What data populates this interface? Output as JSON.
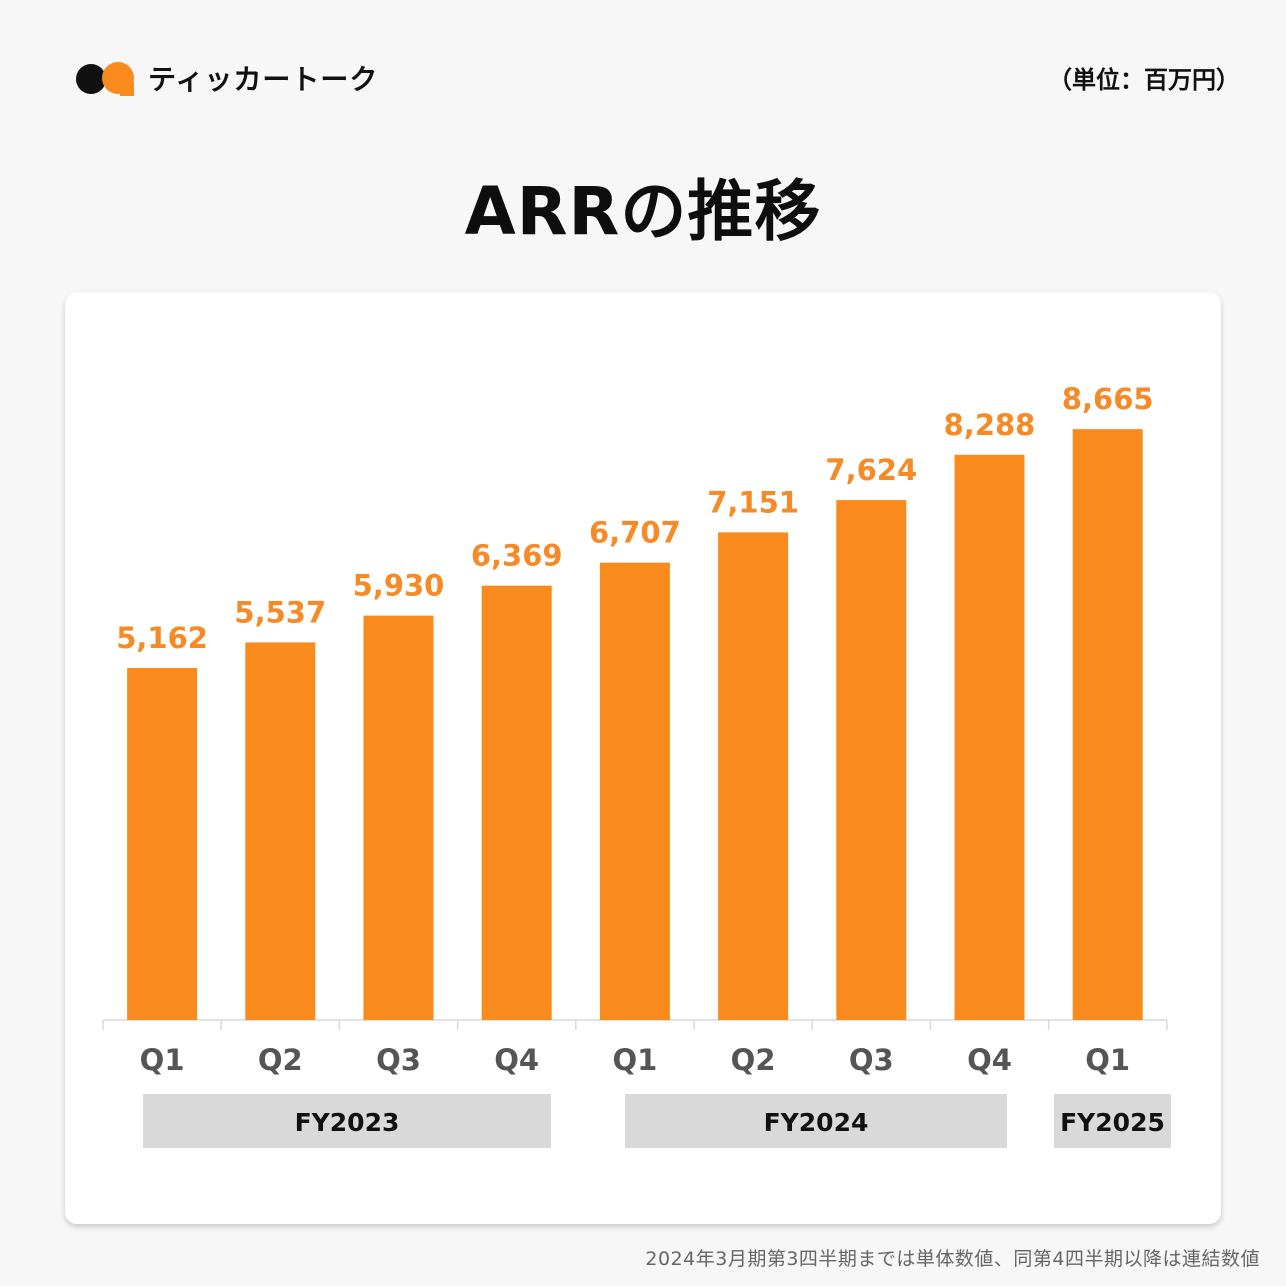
{
  "brand": {
    "name": "ティッカートーク"
  },
  "unit_label": "（単位：百万円）",
  "page_title": "ARRの推移",
  "footnote": "2024年3月期第3四半期までは単体数値、同第4四半期以降は連結数値",
  "colors": {
    "bar": "#f98b1e",
    "label": "#f58a26",
    "group_box": "#d9d9d9",
    "tick_text": "#555555",
    "group_text": "#111111"
  },
  "chart_data": {
    "type": "bar",
    "title": "ARRの推移",
    "unit": "（単位：百万円）",
    "categories": [
      "Q1",
      "Q2",
      "Q3",
      "Q4",
      "Q1",
      "Q2",
      "Q3",
      "Q4",
      "Q1"
    ],
    "groups": [
      {
        "label": "FY2023",
        "start": 0,
        "end": 3
      },
      {
        "label": "FY2024",
        "start": 4,
        "end": 7
      },
      {
        "label": "FY2025",
        "start": 8,
        "end": 8
      }
    ],
    "values": [
      5162,
      5537,
      5930,
      6369,
      6707,
      7151,
      7624,
      8288,
      8665
    ],
    "value_labels": [
      "5,162",
      "5,537",
      "5,930",
      "6,369",
      "6,707",
      "7,151",
      "7,624",
      "8,288",
      "8,665"
    ],
    "ylim": [
      0,
      9000
    ],
    "grid": false,
    "legend": "none"
  }
}
